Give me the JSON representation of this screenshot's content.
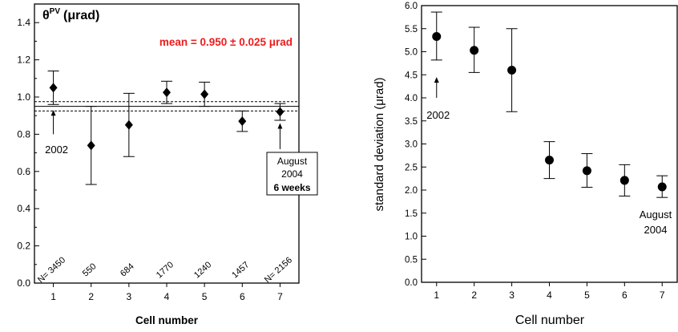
{
  "chart_data": [
    {
      "type": "scatter",
      "title": "θPV (μrad)",
      "title_main": "θ",
      "title_sup": "PV",
      "title_unit": "(μrad)",
      "xlabel": "Cell number",
      "ylabel": "",
      "xlim": [
        0.5,
        7.5
      ],
      "ylim": [
        0.0,
        1.5
      ],
      "xticks": [
        1,
        2,
        3,
        4,
        5,
        6,
        7
      ],
      "xtick_labels": [
        "1",
        "2",
        "3",
        "4",
        "5",
        "6",
        "7"
      ],
      "yticks": [
        0.0,
        0.2,
        0.4,
        0.6,
        0.8,
        1.0,
        1.2,
        1.4
      ],
      "ytick_labels": [
        "0.0",
        "0.2",
        "0.4",
        "0.6",
        "0.8",
        "1.0",
        "1.2",
        "1.4"
      ],
      "marker": "diamond",
      "series": [
        {
          "x": [
            1,
            2,
            3,
            4,
            5,
            6,
            7
          ],
          "y": [
            1.05,
            0.74,
            0.85,
            1.025,
            1.015,
            0.87,
            0.92
          ],
          "err_low": [
            0.96,
            0.53,
            0.68,
            0.965,
            0.95,
            0.815,
            0.875
          ],
          "err_high": [
            1.14,
            0.95,
            1.02,
            1.085,
            1.08,
            0.925,
            0.965
          ]
        }
      ],
      "mean_line": {
        "value": 0.95,
        "uncertainty": 0.025
      },
      "mean_label": "mean = 0.950 ± 0.025 μrad",
      "mean_label_color": "#ee1c1c",
      "counts": [
        "N= 3450",
        "550",
        "684",
        "1770",
        "1240",
        "1457",
        "N= 2156"
      ],
      "annotations": [
        {
          "text": "2002",
          "x": 1,
          "arrow_from": 0.8,
          "arrow_to": 0.93
        },
        {
          "text_lines": [
            "August",
            "2004",
            "6 weeks"
          ],
          "x": 7,
          "arrow_from": 0.72,
          "arrow_to": 0.86
        }
      ]
    },
    {
      "type": "scatter",
      "title": "",
      "xlabel": "Cell number",
      "ylabel": "standard deviation (μrad)",
      "xlim": [
        0.6,
        7.4
      ],
      "ylim": [
        0.0,
        6.0
      ],
      "xticks": [
        1,
        2,
        3,
        4,
        5,
        6,
        7
      ],
      "xtick_labels": [
        "1",
        "2",
        "3",
        "4",
        "5",
        "6",
        "7"
      ],
      "yticks": [
        0.0,
        0.5,
        1.0,
        1.5,
        2.0,
        2.5,
        3.0,
        3.5,
        4.0,
        4.5,
        5.0,
        5.5,
        6.0
      ],
      "ytick_labels": [
        "0.0",
        "0.5",
        "1.0",
        "1.5",
        "2.0",
        "2.5",
        "3.0",
        "3.5",
        "4.0",
        "4.5",
        "5.0",
        "5.5",
        "6.0"
      ],
      "marker": "circle",
      "series": [
        {
          "x": [
            1,
            2,
            3,
            4,
            5,
            6,
            7
          ],
          "y": [
            5.33,
            5.03,
            4.6,
            2.65,
            2.42,
            2.21,
            2.07
          ],
          "err_low": [
            4.82,
            4.55,
            3.7,
            2.25,
            2.06,
            1.87,
            1.84
          ],
          "err_high": [
            5.86,
            5.53,
            5.5,
            3.05,
            2.79,
            2.55,
            2.31
          ]
        }
      ],
      "annotations": [
        {
          "text": "2002",
          "x": 1,
          "arrow_from": 4.0,
          "arrow_to": 4.45
        },
        {
          "text_lines": [
            "August",
            "2004"
          ],
          "x": 7
        }
      ]
    }
  ]
}
